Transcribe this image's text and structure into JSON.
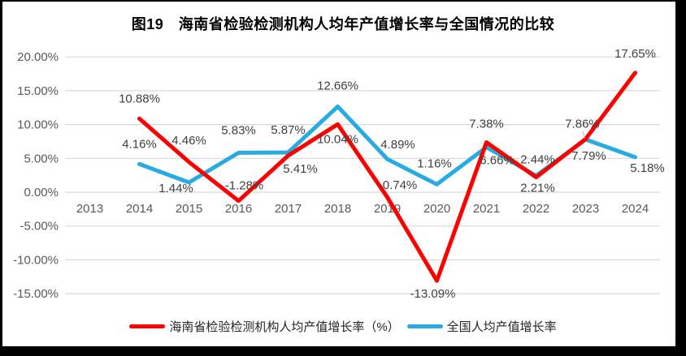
{
  "colors": {
    "background": "#FFFFFF",
    "frame": "#000000",
    "grid": "#D9D9D9",
    "axis_text": "#595959",
    "data_label": "#404040",
    "title_text": "#000000",
    "legend_text": "#262626",
    "leader_line": "#BFBFBF"
  },
  "chart_data": {
    "type": "line",
    "title": "图19　海南省检验检测机构人均年产值增长率与全国情况的比较",
    "categories": [
      "2013",
      "2014",
      "2015",
      "2016",
      "2017",
      "2018",
      "2019",
      "2020",
      "2021",
      "2022",
      "2023",
      "2024"
    ],
    "series": [
      {
        "name": "海南省检验检测机构人均产值增长率（%）",
        "color": "#FE0000",
        "values": [
          null,
          10.88,
          4.46,
          -1.28,
          5.41,
          10.04,
          -0.74,
          -13.09,
          7.38,
          2.21,
          7.86,
          17.65
        ],
        "labels": [
          "",
          "10.88%",
          "4.46%",
          "-1.28%",
          "5.41%",
          "10.04%",
          "-0.74%",
          "-13.09%",
          "7.38%",
          "2.21%",
          "7.86%",
          "17.65%"
        ],
        "label_offsets": [
          [
            0,
            0
          ],
          [
            0,
            -20
          ],
          [
            0,
            -22
          ],
          [
            7,
            -14
          ],
          [
            15,
            21
          ],
          [
            0,
            23
          ],
          [
            13,
            -10
          ],
          [
            -5,
            21
          ],
          [
            0,
            -18
          ],
          [
            2,
            18
          ],
          [
            -4,
            -14
          ],
          [
            0,
            -19
          ]
        ],
        "leader_indexes": [
          10
        ]
      },
      {
        "name": "全国人均产值增长率",
        "color": "#29ABE2",
        "values": [
          null,
          4.16,
          1.44,
          5.83,
          5.87,
          12.66,
          4.89,
          1.16,
          6.66,
          2.44,
          7.79,
          5.18
        ],
        "labels": [
          "",
          "4.16%",
          "1.44%",
          "5.83%",
          "5.87%",
          "12.66%",
          "4.89%",
          "1.16%",
          "6.66%",
          "2.44%",
          "7.79%",
          "5.18%"
        ],
        "label_offsets": [
          [
            0,
            0
          ],
          [
            0,
            -20
          ],
          [
            -16,
            12
          ],
          [
            0,
            -23
          ],
          [
            0,
            -23
          ],
          [
            0,
            -21
          ],
          [
            13,
            -13
          ],
          [
            -3,
            -21
          ],
          [
            13,
            21
          ],
          [
            2,
            -15
          ],
          [
            4,
            25
          ],
          [
            15,
            18
          ]
        ],
        "leader_indexes": []
      }
    ],
    "ylim": [
      -15,
      20
    ],
    "ytick_labels": [
      "20.00%",
      "15.00%",
      "10.00%",
      "5.00%",
      "0.00%",
      "-5.00%",
      "-10.00%",
      "-15.00%"
    ],
    "grid": true,
    "legend_position": "bottom"
  }
}
